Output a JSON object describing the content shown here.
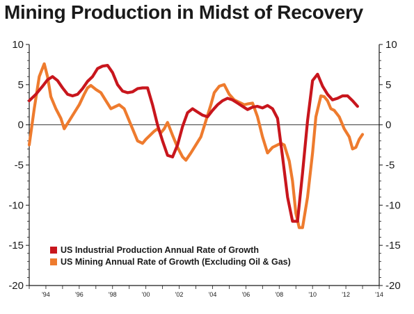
{
  "chart_data": {
    "type": "line",
    "title": "Mining Production in Midst of Recovery",
    "xlabel": "",
    "ylabel": "",
    "ylim": [
      -20,
      10
    ],
    "xlim": [
      1993,
      2014
    ],
    "y_ticks": [
      10,
      5,
      0,
      -5,
      -10,
      -15,
      -20
    ],
    "y_tick_labels": [
      "10",
      "5",
      "0",
      "-5",
      "-10",
      "-15",
      "-20"
    ],
    "y_axis_side": "both",
    "x_ticks": [
      1994,
      1996,
      1998,
      2000,
      2002,
      2004,
      2006,
      2008,
      2010,
      2012,
      2014
    ],
    "x_tick_labels": [
      "'94",
      "'96",
      "'98",
      "'00",
      "'02",
      "'04",
      "'06",
      "'08",
      "'10",
      "'12",
      "'14"
    ],
    "zero_line": true,
    "grid": false,
    "legend_position": "bottom-left",
    "series": [
      {
        "name": "US Industrial Production Annual Rate of Growth",
        "color": "#c8161d",
        "x": [
          1993.0,
          1993.4,
          1993.8,
          1994.1,
          1994.4,
          1994.7,
          1995.0,
          1995.3,
          1995.6,
          1995.9,
          1996.2,
          1996.5,
          1996.8,
          1997.1,
          1997.4,
          1997.7,
          1998.0,
          1998.3,
          1998.6,
          1998.9,
          1999.2,
          1999.5,
          1999.8,
          2000.1,
          2000.4,
          2000.7,
          2001.0,
          2001.3,
          2001.6,
          2001.9,
          2002.2,
          2002.5,
          2002.8,
          2003.1,
          2003.4,
          2003.7,
          2004.0,
          2004.3,
          2004.6,
          2004.9,
          2005.2,
          2005.5,
          2005.8,
          2006.1,
          2006.4,
          2006.7,
          2007.0,
          2007.3,
          2007.6,
          2007.9,
          2008.2,
          2008.5,
          2008.8,
          2009.1,
          2009.4,
          2009.7,
          2010.0,
          2010.3,
          2010.6,
          2010.9,
          2011.2,
          2011.5,
          2011.8,
          2012.1,
          2012.4,
          2012.7
        ],
        "y": [
          3.0,
          3.8,
          4.8,
          5.6,
          6.0,
          5.5,
          4.6,
          3.8,
          3.6,
          3.8,
          4.5,
          5.4,
          6.0,
          7.0,
          7.3,
          7.4,
          6.5,
          5.0,
          4.2,
          4.0,
          4.1,
          4.5,
          4.6,
          4.6,
          2.5,
          0.0,
          -2.0,
          -3.8,
          -4.0,
          -2.5,
          -0.2,
          1.5,
          2.0,
          1.6,
          1.2,
          1.0,
          1.8,
          2.5,
          3.0,
          3.3,
          3.1,
          2.7,
          2.3,
          1.9,
          2.2,
          2.3,
          2.1,
          2.4,
          2.0,
          0.8,
          -4.0,
          -9.0,
          -12.0,
          -12.0,
          -6.0,
          0.5,
          5.5,
          6.3,
          4.8,
          3.8,
          3.1,
          3.3,
          3.6,
          3.6,
          3.0,
          2.3
        ]
      },
      {
        "name": "US Mining Annual Rate of Growth (Excluding Oil & Gas)",
        "color": "#ee7b2e",
        "x": [
          1993.0,
          1993.3,
          1993.6,
          1993.9,
          1994.1,
          1994.3,
          1994.6,
          1994.9,
          1995.1,
          1995.4,
          1995.7,
          1996.0,
          1996.3,
          1996.5,
          1996.7,
          1997.0,
          1997.3,
          1997.6,
          1997.9,
          1998.1,
          1998.4,
          1998.7,
          1998.9,
          1999.2,
          1999.5,
          1999.8,
          2000.0,
          2000.3,
          2000.5,
          2000.7,
          2000.9,
          2001.1,
          2001.3,
          2001.6,
          2001.9,
          2002.2,
          2002.4,
          2002.7,
          2003.0,
          2003.3,
          2003.6,
          2003.9,
          2004.1,
          2004.4,
          2004.7,
          2005.0,
          2005.3,
          2005.6,
          2005.9,
          2006.1,
          2006.4,
          2006.7,
          2007.0,
          2007.3,
          2007.6,
          2007.9,
          2008.1,
          2008.3,
          2008.6,
          2008.8,
          2009.0,
          2009.2,
          2009.4,
          2009.7,
          2010.0,
          2010.2,
          2010.5,
          2010.7,
          2010.9,
          2011.1,
          2011.3,
          2011.6,
          2011.9,
          2012.2,
          2012.4,
          2012.6,
          2012.8,
          2013.0
        ],
        "y": [
          -2.5,
          2.0,
          6.0,
          7.6,
          6.0,
          3.5,
          2.0,
          0.8,
          -0.5,
          0.5,
          1.5,
          2.5,
          3.8,
          4.6,
          4.9,
          4.4,
          4.0,
          3.0,
          2.0,
          2.2,
          2.5,
          2.0,
          1.0,
          -0.5,
          -2.0,
          -2.3,
          -1.8,
          -1.2,
          -0.8,
          -0.5,
          -1.0,
          -0.5,
          0.3,
          -1.3,
          -2.8,
          -4.0,
          -4.4,
          -3.5,
          -2.5,
          -1.5,
          0.5,
          2.5,
          4.0,
          4.8,
          5.0,
          3.8,
          3.1,
          2.8,
          2.5,
          2.6,
          2.7,
          1.0,
          -1.5,
          -3.5,
          -2.8,
          -2.5,
          -2.3,
          -2.5,
          -4.5,
          -7.0,
          -11.0,
          -12.8,
          -12.8,
          -9.0,
          -3.5,
          1.0,
          3.6,
          3.5,
          3.0,
          2.0,
          1.8,
          1.0,
          -0.5,
          -1.5,
          -3.0,
          -2.8,
          -1.8,
          -1.2
        ]
      }
    ]
  }
}
